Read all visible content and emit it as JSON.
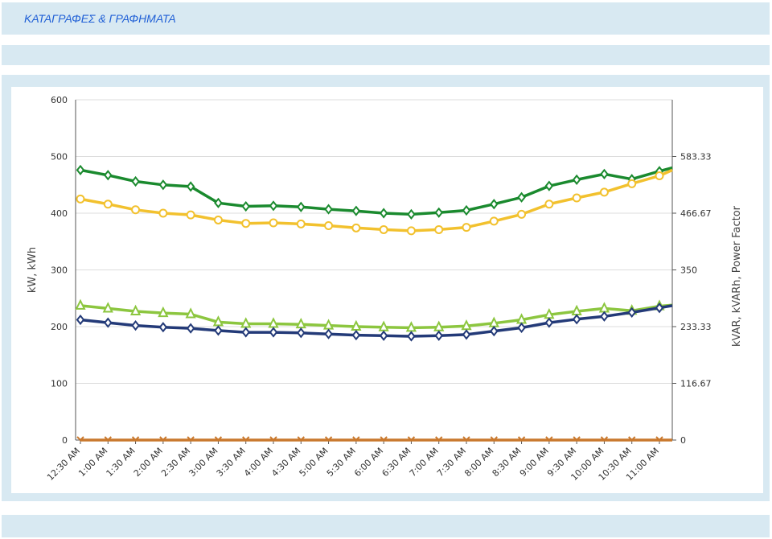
{
  "header": {
    "title": "ΚΑΤΑΓΡΑΦΕΣ & ΓΡΑΦΗΜΑΤΑ"
  },
  "colors": {
    "band": "#d8e9f2",
    "title": "#1f5fd6",
    "grid": "#dcdcdc"
  },
  "chart_data": {
    "type": "line",
    "title": "",
    "ylabel": "kW, kWh",
    "y2label": "kVAR, kVARh, Power Factor",
    "ylim": [
      0,
      600
    ],
    "y2lim": [
      0,
      700
    ],
    "yticks": [
      "0",
      "100",
      "200",
      "300",
      "400",
      "500",
      "600"
    ],
    "y2ticks": [
      "0",
      "116.67",
      "233.33",
      "350",
      "466.67",
      "583.33"
    ],
    "grid": true,
    "categories": [
      "12:30 AM",
      "1:00 AM",
      "1:30 AM",
      "2:00 AM",
      "2:30 AM",
      "3:00 AM",
      "3:30 AM",
      "4:00 AM",
      "4:30 AM",
      "5:00 AM",
      "5:30 AM",
      "6:00 AM",
      "6:30 AM",
      "7:00 AM",
      "7:30 AM",
      "8:00 AM",
      "8:30 AM",
      "9:00 AM",
      "9:30 AM",
      "10:00 AM",
      "10:30 AM",
      "11:00 AM"
    ],
    "series": [
      {
        "color": "#1a8a2e",
        "marker": "diamond",
        "axis": "left",
        "values": [
          476,
          467,
          456,
          450,
          447,
          418,
          412,
          413,
          411,
          407,
          404,
          400,
          398,
          401,
          405,
          416,
          428,
          448,
          459,
          469,
          460,
          474
        ],
        "end_value": 480
      },
      {
        "color": "#f2c12e",
        "marker": "circle",
        "axis": "left",
        "values": [
          425,
          416,
          406,
          400,
          397,
          388,
          382,
          383,
          381,
          378,
          374,
          371,
          369,
          371,
          375,
          386,
          398,
          416,
          427,
          437,
          452,
          466
        ],
        "end_value": 476
      },
      {
        "color": "#8cc63f",
        "marker": "triangle-up",
        "axis": "left",
        "values": [
          237,
          232,
          227,
          224,
          222,
          208,
          205,
          205,
          204,
          202,
          200,
          199,
          198,
          199,
          201,
          206,
          212,
          221,
          227,
          232,
          228,
          236
        ],
        "end_value": 238
      },
      {
        "color": "#233a78",
        "marker": "diamond",
        "axis": "left",
        "values": [
          212,
          207,
          202,
          199,
          197,
          193,
          190,
          190,
          189,
          187,
          185,
          184,
          183,
          184,
          186,
          192,
          198,
          207,
          213,
          218,
          225,
          233
        ],
        "end_value": 237
      },
      {
        "color": "#c9782d",
        "marker": "x",
        "axis": "left",
        "values": [
          0,
          0,
          0,
          0,
          0,
          0,
          0,
          0,
          0,
          0,
          0,
          0,
          0,
          0,
          0,
          0,
          0,
          0,
          0,
          0,
          0,
          0
        ],
        "end_value": 0
      }
    ]
  }
}
